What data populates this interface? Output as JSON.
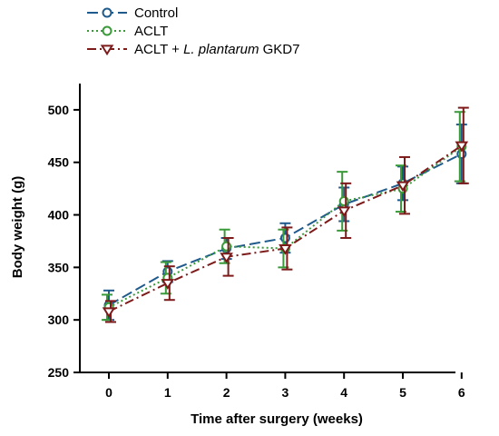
{
  "chart_data": {
    "type": "line",
    "title": "",
    "xlabel": "Time after surgery (weeks)",
    "ylabel": "Body weight  (g)",
    "x": [
      0,
      1,
      2,
      3,
      4,
      5,
      6
    ],
    "xticks": [
      "0",
      "1",
      "2",
      "3",
      "4",
      "5",
      "6"
    ],
    "ylim": [
      250,
      525
    ],
    "yticks": [
      250,
      300,
      350,
      400,
      450,
      500
    ],
    "grid": false,
    "legend_position": "top-left",
    "series": [
      {
        "name": "Control",
        "legend_parts": [
          {
            "text": "Control",
            "italic": false
          }
        ],
        "color": "#1f5a8c",
        "line_style": "dashed",
        "marker": "circle",
        "values": [
          314,
          346,
          368,
          378,
          410,
          430,
          458
        ],
        "errors": [
          14,
          10,
          10,
          14,
          16,
          16,
          28
        ]
      },
      {
        "name": "ACLT",
        "legend_parts": [
          {
            "text": "ACLT",
            "italic": false
          }
        ],
        "color": "#3a9a3a",
        "line_style": "dotted",
        "marker": "circle",
        "values": [
          312,
          340,
          370,
          368,
          413,
          425,
          465
        ],
        "errors": [
          12,
          15,
          16,
          18,
          28,
          22,
          33
        ]
      },
      {
        "name": "ACLT + L. plantarum GKD7",
        "legend_parts": [
          {
            "text": "ACLT + ",
            "italic": false
          },
          {
            "text": "L. plantarum",
            "italic": true
          },
          {
            "text": " GKD7",
            "italic": false
          }
        ],
        "color": "#7d1a1a",
        "line_style": "dash-dot",
        "marker": "triangle-down",
        "values": [
          308,
          335,
          360,
          368,
          404,
          428,
          466
        ],
        "errors": [
          10,
          16,
          18,
          20,
          26,
          27,
          36
        ]
      }
    ]
  }
}
